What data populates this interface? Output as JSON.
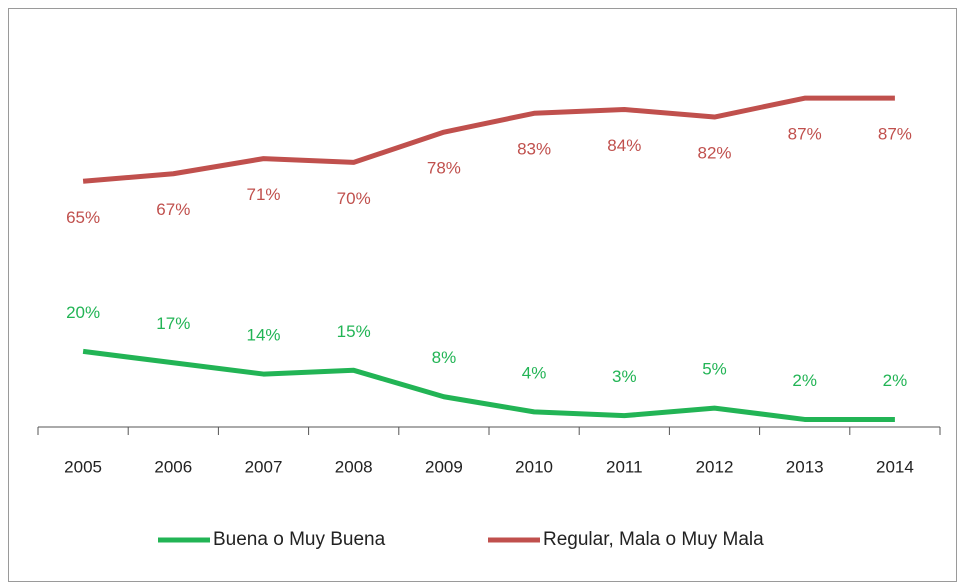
{
  "chart_data": {
    "type": "line",
    "categories": [
      "2005",
      "2006",
      "2007",
      "2008",
      "2009",
      "2010",
      "2011",
      "2012",
      "2013",
      "2014"
    ],
    "series": [
      {
        "name": "Buena o Muy Buena",
        "color": "#22b455",
        "values": [
          20,
          17,
          14,
          15,
          8,
          4,
          3,
          5,
          2,
          2
        ],
        "value_labels": [
          "20%",
          "17%",
          "14%",
          "15%",
          "8%",
          "4%",
          "3%",
          "5%",
          "2%",
          "2%"
        ]
      },
      {
        "name": "Regular, Mala o Muy Mala",
        "color": "#c0504d",
        "values": [
          65,
          67,
          71,
          70,
          78,
          83,
          84,
          82,
          87,
          87
        ],
        "value_labels": [
          "65%",
          "67%",
          "71%",
          "70%",
          "78%",
          "83%",
          "84%",
          "82%",
          "87%",
          "87%"
        ]
      }
    ],
    "ylim": [
      0,
      100
    ],
    "legend": "bottom"
  }
}
